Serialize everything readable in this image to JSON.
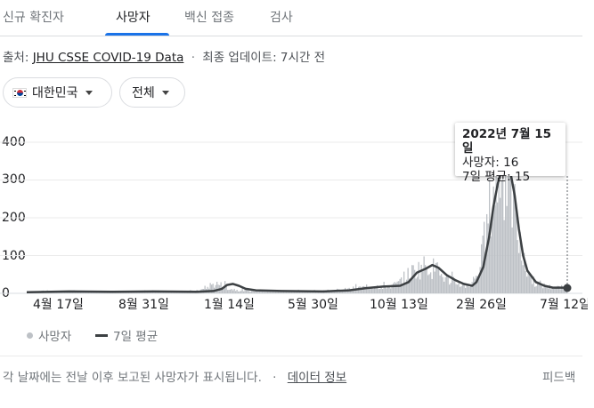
{
  "tabs": [
    {
      "label": "신규 확진자",
      "active": false
    },
    {
      "label": "사망자",
      "active": true
    },
    {
      "label": "백신 접종",
      "active": false
    },
    {
      "label": "검사",
      "active": false
    }
  ],
  "source": {
    "prefix": "출처:",
    "link": "JHU CSSE COVID-19 Data",
    "updated": "최종 업데이트: 7시간 전"
  },
  "filters": {
    "country": "대한민국",
    "range": "전체"
  },
  "chart_data": {
    "type": "bar",
    "ylim": [
      0,
      400
    ],
    "yticks": [
      400,
      300,
      200,
      100,
      0
    ],
    "xticks": [
      "4월 17일",
      "8월 31일",
      "1월 14일",
      "5월 30일",
      "10월 13일",
      "2월 26일",
      "7월 12일"
    ],
    "series": [
      {
        "name": "사망자",
        "color": "#bdc1c6"
      },
      {
        "name": "7일 평균",
        "color": "#3c4043"
      }
    ],
    "average_points": [
      [
        0,
        3
      ],
      [
        50,
        5
      ],
      [
        100,
        4
      ],
      [
        150,
        5
      ],
      [
        200,
        4
      ],
      [
        220,
        6
      ],
      [
        230,
        12
      ],
      [
        236,
        22
      ],
      [
        243,
        25
      ],
      [
        250,
        20
      ],
      [
        258,
        12
      ],
      [
        270,
        8
      ],
      [
        300,
        6
      ],
      [
        350,
        5
      ],
      [
        380,
        8
      ],
      [
        400,
        14
      ],
      [
        420,
        18
      ],
      [
        440,
        20
      ],
      [
        450,
        30
      ],
      [
        460,
        55
      ],
      [
        470,
        65
      ],
      [
        478,
        75
      ],
      [
        485,
        68
      ],
      [
        495,
        48
      ],
      [
        505,
        35
      ],
      [
        515,
        25
      ],
      [
        525,
        20
      ],
      [
        530,
        30
      ],
      [
        538,
        70
      ],
      [
        545,
        150
      ],
      [
        550,
        230
      ],
      [
        555,
        290
      ],
      [
        560,
        330
      ],
      [
        565,
        340
      ],
      [
        570,
        320
      ],
      [
        575,
        260
      ],
      [
        580,
        170
      ],
      [
        585,
        100
      ],
      [
        590,
        60
      ],
      [
        600,
        30
      ],
      [
        610,
        20
      ],
      [
        620,
        15
      ],
      [
        630,
        15
      ],
      [
        637,
        15
      ]
    ],
    "tooltip": {
      "date": "2022년 7월 15일",
      "deaths": "사망자: 16",
      "average": "7일 평균: 15"
    }
  },
  "footer": {
    "note": "각 날짜에는 전날 이후 보고된 사망자가 표시됩니다.",
    "link": "데이터 정보",
    "feedback": "피드백"
  }
}
